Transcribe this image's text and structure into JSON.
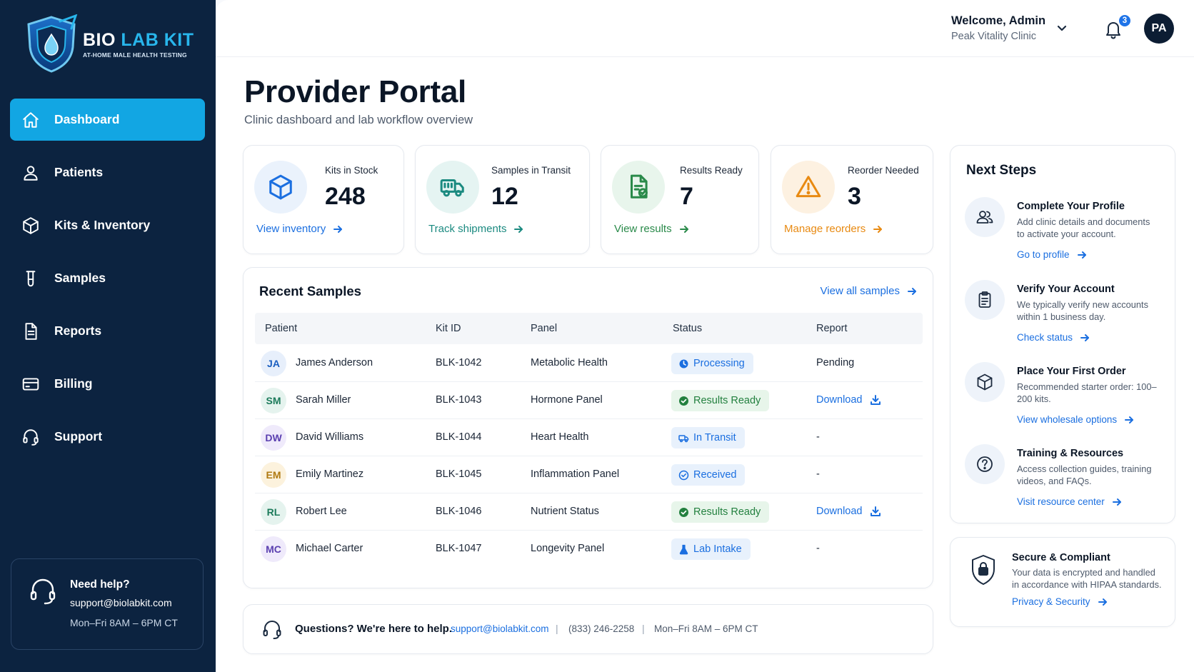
{
  "brand": {
    "name_part1": "BIO",
    "name_part2": "LAB KIT",
    "tagline": "AT-HOME MALE HEALTH TESTING",
    "accent_color": "#12a6e3",
    "sidebar_color": "#0c2340"
  },
  "sidebar": {
    "items": [
      {
        "label": "Dashboard",
        "icon": "home-icon",
        "active": true
      },
      {
        "label": "Patients",
        "icon": "user-icon"
      },
      {
        "label": "Kits & Inventory",
        "icon": "box-icon"
      },
      {
        "label": "Samples",
        "icon": "test-tube-icon"
      },
      {
        "label": "Reports",
        "icon": "document-icon"
      },
      {
        "label": "Billing",
        "icon": "credit-card-icon"
      },
      {
        "label": "Support",
        "icon": "headset-icon"
      }
    ],
    "help": {
      "title": "Need help?",
      "email": "support@biolabkit.com",
      "hours": "Mon–Fri 8AM – 6PM CT"
    }
  },
  "header": {
    "welcome": "Welcome, Admin",
    "clinic": "Peak Vitality Clinic",
    "notifications": "3",
    "avatar_initials": "PA"
  },
  "page": {
    "title": "Provider Portal",
    "subtitle": "Clinic dashboard and lab workflow overview"
  },
  "stats": [
    {
      "label": "Kits in Stock",
      "value": "248",
      "link": "View inventory",
      "color": "#1b6fe0",
      "icon": "box-icon"
    },
    {
      "label": "Samples in Transit",
      "value": "12",
      "link": "Track shipments",
      "color": "#1b8a80",
      "icon": "truck-icon"
    },
    {
      "label": "Results Ready",
      "value": "7",
      "link": "View results",
      "color": "#2a8a4a",
      "icon": "file-check-icon"
    },
    {
      "label": "Reorder Needed",
      "value": "3",
      "link": "Manage reorders",
      "color": "#e88a12",
      "icon": "warning-icon"
    }
  ],
  "recent": {
    "title": "Recent Samples",
    "view_all": "View all samples",
    "columns": [
      "Patient",
      "Kit ID",
      "Panel",
      "Status",
      "Report"
    ],
    "rows": [
      {
        "initials": "JA",
        "name": "James Anderson",
        "kit": "BLK-1042",
        "panel": "Metabolic Health",
        "status": "Processing",
        "report": "Pending"
      },
      {
        "initials": "SM",
        "name": "Sarah Miller",
        "kit": "BLK-1043",
        "panel": "Hormone Panel",
        "status": "Results Ready",
        "report": "Download"
      },
      {
        "initials": "DW",
        "name": "David Williams",
        "kit": "BLK-1044",
        "panel": "Heart Health",
        "status": "In Transit",
        "report": "-"
      },
      {
        "initials": "EM",
        "name": "Emily Martinez",
        "kit": "BLK-1045",
        "panel": "Inflammation Panel",
        "status": "Received",
        "report": "-"
      },
      {
        "initials": "RL",
        "name": "Robert Lee",
        "kit": "BLK-1046",
        "panel": "Nutrient Status",
        "status": "Results Ready",
        "report": "Download"
      },
      {
        "initials": "MC",
        "name": "Michael Carter",
        "kit": "BLK-1047",
        "panel": "Longevity Panel",
        "status": "Lab Intake",
        "report": "-"
      }
    ]
  },
  "footer": {
    "question": "Questions? We're here to help.",
    "email": "support@biolabkit.com",
    "separator": "|",
    "phone": "(833) 246-2258",
    "hours": "Mon–Fri 8AM – 6PM CT"
  },
  "next_steps": {
    "title": "Next Steps",
    "items": [
      {
        "title": "Complete Your Profile",
        "desc": "Add clinic details and documents to activate your account.",
        "link": "Go to profile",
        "icon": "users-icon"
      },
      {
        "title": "Verify Your Account",
        "desc": "We typically verify new accounts within 1 business day.",
        "link": "Check status",
        "icon": "clipboard-icon"
      },
      {
        "title": "Place Your First Order",
        "desc": "Recommended starter order: 100–200 kits.",
        "link": "View wholesale options",
        "icon": "box-icon"
      },
      {
        "title": "Training & Resources",
        "desc": "Access collection guides, training videos, and FAQs.",
        "link": "Visit resource center",
        "icon": "question-icon"
      }
    ]
  },
  "secure": {
    "title": "Secure & Compliant",
    "desc": "Your data is encrypted and handled in accordance with HIPAA standards.",
    "link": "Privacy & Security",
    "icon": "shield-lock-icon"
  }
}
